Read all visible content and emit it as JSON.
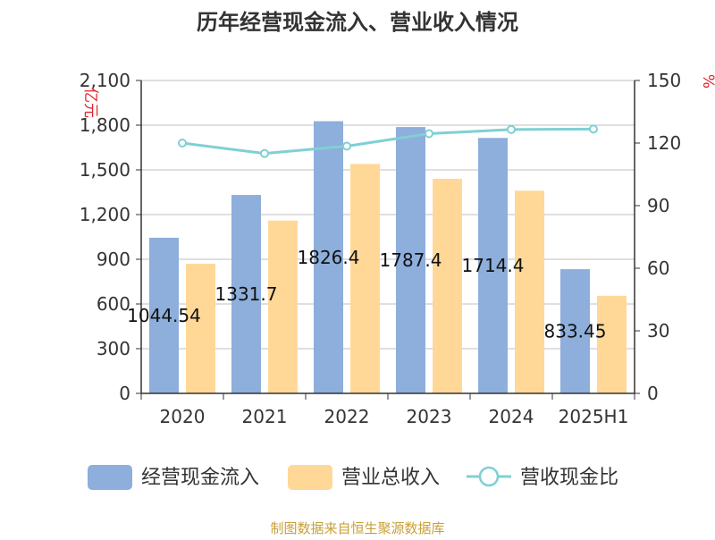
{
  "title": "历年经营现金流入、营业收入情况",
  "source": "制图数据来自恒生聚源数据库",
  "colors": {
    "cash_inflow": "#8eaedb",
    "revenue": "#ffd898",
    "ratio": "#7fd0d3",
    "title": "#333333",
    "axis": "#333333",
    "unit_label": "#e0242b",
    "grid": "#bfbfbf",
    "source": "#c8a03a"
  },
  "chart_data": {
    "type": "bar",
    "title": "历年经营现金流入、营业收入情况",
    "categories": [
      "2020",
      "2021",
      "2022",
      "2023",
      "2024",
      "2025H1"
    ],
    "y_left": {
      "label": "亿元",
      "ticks": [
        "0",
        "300",
        "600",
        "900",
        "1,200",
        "1,500",
        "1,800",
        "2,100"
      ],
      "ylim": [
        0,
        2100
      ]
    },
    "y_right": {
      "label": "%",
      "ticks": [
        "0",
        "30",
        "60",
        "90",
        "120",
        "150"
      ],
      "ylim": [
        0,
        150
      ]
    },
    "grid": true,
    "legend_position": "bottom",
    "series": [
      {
        "name": "经营现金流入",
        "type": "bar",
        "axis": "left",
        "values": [
          1044.54,
          1331.7,
          1826.4,
          1787.4,
          1714.4,
          833.45
        ],
        "data_labels": [
          "1044.54",
          "1331.7",
          "1826.4",
          "1787.4",
          "1714.4",
          "833.45"
        ]
      },
      {
        "name": "营业总收入",
        "type": "bar",
        "axis": "left",
        "values": [
          870,
          1160,
          1540,
          1440,
          1360,
          655
        ]
      },
      {
        "name": "营收现金比",
        "type": "line",
        "axis": "right",
        "values": [
          120,
          115,
          118.5,
          124.5,
          126.5,
          126.7
        ]
      }
    ]
  }
}
